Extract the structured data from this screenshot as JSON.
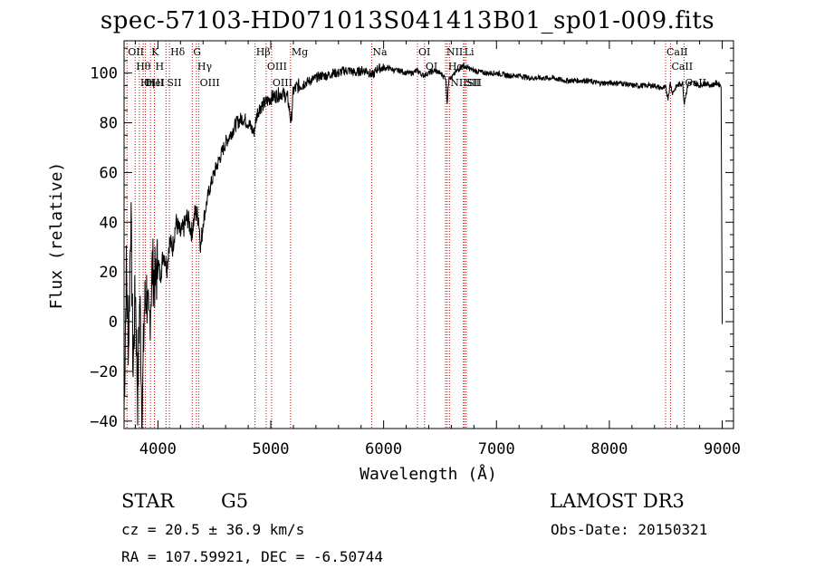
{
  "chart_data": {
    "type": "line",
    "title": "spec-57103-HD071013S041413B01_sp01-009.fits",
    "xlabel": "Wavelength (Å)",
    "ylabel": "Flux (relative)",
    "xlim": [
      3700,
      9100
    ],
    "ylim": [
      -43,
      113
    ],
    "xticks": [
      4000,
      5000,
      6000,
      7000,
      8000,
      9000
    ],
    "xtick_labels": [
      "4000",
      "5000",
      "6000",
      "7000",
      "8000",
      "9000"
    ],
    "yticks": [
      -40,
      -20,
      0,
      20,
      40,
      60,
      80,
      100
    ],
    "ytick_labels": [
      "−40",
      "−20",
      "0",
      "20",
      "40",
      "60",
      "80",
      "100"
    ],
    "series": [
      {
        "name": "spectrum",
        "x": [
          3700,
          3720,
          3740,
          3760,
          3780,
          3800,
          3820,
          3840,
          3860,
          3880,
          3900,
          3920,
          3950,
          3980,
          4000,
          4020,
          4050,
          4080,
          4100,
          4130,
          4160,
          4200,
          4230,
          4260,
          4300,
          4330,
          4360,
          4380,
          4400,
          4450,
          4500,
          4550,
          4600,
          4650,
          4700,
          4750,
          4800,
          4850,
          4880,
          4900,
          4950,
          5000,
          5050,
          5100,
          5150,
          5180,
          5200,
          5250,
          5300,
          5350,
          5400,
          5450,
          5500,
          5550,
          5600,
          5650,
          5700,
          5750,
          5800,
          5850,
          5900,
          5950,
          6000,
          6050,
          6100,
          6150,
          6200,
          6250,
          6300,
          6350,
          6400,
          6450,
          6500,
          6550,
          6563,
          6580,
          6600,
          6650,
          6700,
          6750,
          6800,
          6900,
          7000,
          7100,
          7200,
          7300,
          7400,
          7500,
          7600,
          7700,
          7800,
          7900,
          8000,
          8100,
          8200,
          8300,
          8400,
          8450,
          8500,
          8520,
          8540,
          8560,
          8600,
          8650,
          8662,
          8700,
          8750,
          8800,
          8850,
          8900,
          8950,
          8990,
          9000
        ],
        "values": [
          -35,
          20,
          -10,
          45,
          -20,
          15,
          -30,
          10,
          -38,
          5,
          12,
          -5,
          22,
          15,
          25,
          18,
          28,
          22,
          32,
          30,
          40,
          35,
          38,
          42,
          36,
          44,
          42,
          30,
          40,
          52,
          60,
          66,
          72,
          76,
          80,
          82,
          80,
          76,
          84,
          86,
          88,
          90,
          91,
          92,
          90,
          80,
          93,
          95,
          96,
          97,
          98,
          99,
          99,
          100,
          100,
          101,
          101,
          100,
          101,
          101,
          99,
          102,
          102,
          102,
          101,
          101,
          100,
          100,
          101,
          99,
          100,
          101,
          100,
          98,
          88,
          99,
          98,
          101,
          103,
          102,
          101,
          100,
          100,
          99,
          99,
          98,
          98,
          98,
          97,
          97,
          97,
          96,
          96,
          96,
          95,
          95,
          95,
          94,
          94,
          90,
          96,
          92,
          95,
          96,
          88,
          96,
          96,
          95,
          96,
          95,
          96,
          95,
          -1
        ]
      }
    ],
    "line_markers": [
      {
        "wavelength": 3726,
        "labels": [
          "OII"
        ]
      },
      {
        "wavelength": 3798,
        "labels": [
          "Hθ"
        ]
      },
      {
        "wavelength": 3835,
        "labels": [
          "Hη"
        ]
      },
      {
        "wavelength": 3869,
        "labels": [
          "OIII"
        ]
      },
      {
        "wavelength": 3889,
        "labels": [
          "HeI"
        ]
      },
      {
        "wavelength": 3934,
        "labels": [
          "K"
        ]
      },
      {
        "wavelength": 3969,
        "labels": [
          "H"
        ]
      },
      {
        "wavelength": 4072,
        "labels": [
          "SII"
        ]
      },
      {
        "wavelength": 4102,
        "labels": [
          "Hδ"
        ]
      },
      {
        "wavelength": 4304,
        "labels": [
          "G"
        ]
      },
      {
        "wavelength": 4341,
        "labels": [
          "Hγ"
        ]
      },
      {
        "wavelength": 4363,
        "labels": [
          "OIII"
        ]
      },
      {
        "wavelength": 4861,
        "labels": [
          "Hβ"
        ]
      },
      {
        "wavelength": 4959,
        "labels": [
          "OIII"
        ]
      },
      {
        "wavelength": 5007,
        "labels": [
          "OIII"
        ]
      },
      {
        "wavelength": 5175,
        "labels": [
          "Mg"
        ]
      },
      {
        "wavelength": 5894,
        "labels": [
          "Na"
        ]
      },
      {
        "wavelength": 6300,
        "labels": [
          "OI"
        ]
      },
      {
        "wavelength": 6363,
        "labels": [
          "OI"
        ]
      },
      {
        "wavelength": 6548,
        "labels": [
          "NII"
        ]
      },
      {
        "wavelength": 6563,
        "labels": [
          "Hα"
        ]
      },
      {
        "wavelength": 6583,
        "labels": [
          "NII"
        ]
      },
      {
        "wavelength": 6707,
        "labels": [
          "Li"
        ]
      },
      {
        "wavelength": 6716,
        "labels": [
          "SII"
        ]
      },
      {
        "wavelength": 6731,
        "labels": [
          "SII"
        ]
      },
      {
        "wavelength": 8498,
        "labels": [
          "CaII"
        ]
      },
      {
        "wavelength": 8542,
        "labels": [
          "CaII"
        ]
      },
      {
        "wavelength": 8662,
        "labels": [
          "CaII"
        ]
      }
    ],
    "colors": {
      "axis": "#000000",
      "spectrum": "#000000",
      "marker": "#cc0000"
    }
  },
  "footer": {
    "object_class": "STAR",
    "subclass": "G5",
    "survey": "LAMOST DR3",
    "redshift": "cz = 20.5 ± 36.9 km/s",
    "obs_date": "Obs-Date: 20150321",
    "coords": "RA = 107.59921, DEC =  -6.50744"
  }
}
